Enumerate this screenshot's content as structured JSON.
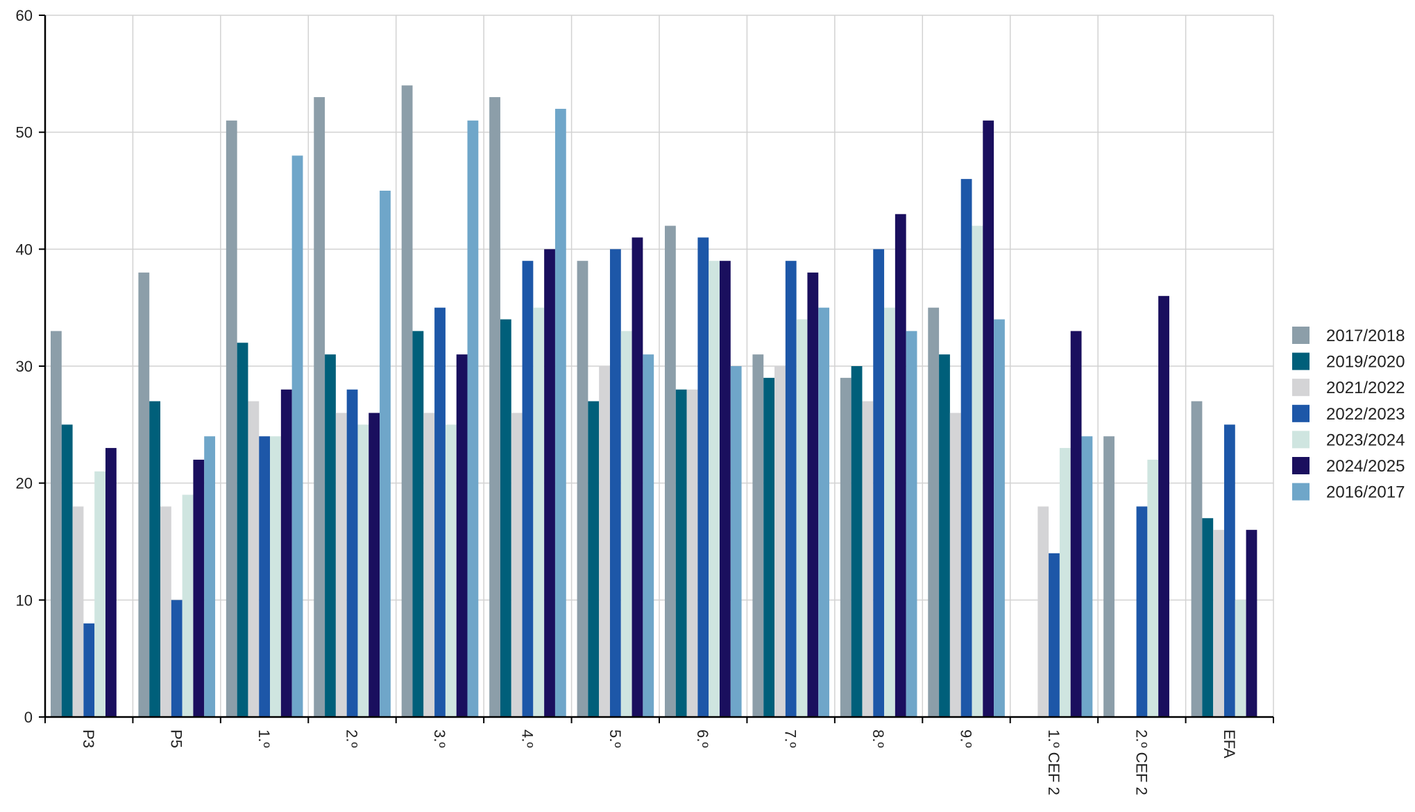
{
  "chart_data": {
    "type": "bar",
    "title": "",
    "xlabel": "",
    "ylabel": "",
    "ylim": [
      0,
      60
    ],
    "yticks": [
      0,
      10,
      20,
      30,
      40,
      50,
      60
    ],
    "grid": true,
    "legend_position": "right",
    "categories": [
      "P3",
      "P5",
      "1.º",
      "2.º",
      "3.º",
      "4.º",
      "5.º",
      "6.º",
      "7.º",
      "8.º",
      "9.º",
      "1.º CEF 2",
      "2.º CEF 2",
      "EFA"
    ],
    "series": [
      {
        "name": "2017/2018",
        "color": "#8c9ea9",
        "values": [
          33,
          38,
          51,
          53,
          54,
          53,
          39,
          42,
          31,
          29,
          35,
          null,
          24,
          27
        ]
      },
      {
        "name": "2019/2020",
        "color": "#005f7a",
        "values": [
          25,
          27,
          32,
          31,
          33,
          34,
          27,
          28,
          29,
          30,
          31,
          null,
          null,
          17
        ]
      },
      {
        "name": "2021/2022",
        "color": "#d4d4d6",
        "values": [
          18,
          18,
          27,
          26,
          26,
          26,
          30,
          28,
          30,
          27,
          26,
          18,
          null,
          16
        ]
      },
      {
        "name": "2022/2023",
        "color": "#1d57a8",
        "values": [
          8,
          10,
          24,
          28,
          35,
          39,
          40,
          41,
          39,
          40,
          46,
          14,
          18,
          25
        ]
      },
      {
        "name": "2023/2024",
        "color": "#cfe5e0",
        "values": [
          21,
          19,
          24,
          25,
          25,
          35,
          33,
          39,
          34,
          35,
          42,
          23,
          22,
          10
        ]
      },
      {
        "name": "2024/2025",
        "color": "#1a0f5e",
        "values": [
          23,
          22,
          28,
          26,
          31,
          40,
          41,
          39,
          38,
          43,
          51,
          33,
          36,
          16
        ]
      },
      {
        "name": "2016/2017",
        "color": "#6fa6c9",
        "values": [
          null,
          24,
          48,
          45,
          51,
          52,
          31,
          30,
          35,
          33,
          34,
          24,
          null,
          null
        ]
      }
    ]
  }
}
